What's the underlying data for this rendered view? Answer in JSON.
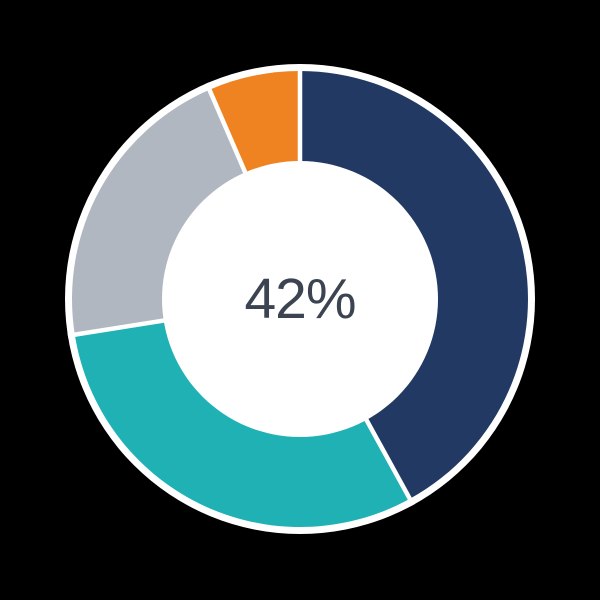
{
  "page": {
    "background_color": "#000000"
  },
  "chart_data": {
    "type": "donut",
    "title": "",
    "center_label": "42%",
    "center_label_color": "#3B4450",
    "start_angle_deg": 0,
    "direction": "clockwise",
    "total": 100,
    "legend": "none",
    "grid": "off",
    "highlighted_segment": "navy",
    "gap_color": "#FFFFFF",
    "hole_color": "#FFFFFF",
    "halo_color": "#FFFFFF",
    "segments": [
      {
        "name": "navy",
        "value": 42,
        "color": "#223963"
      },
      {
        "name": "teal",
        "value": 30.5,
        "color": "#1FB1B4"
      },
      {
        "name": "gray",
        "value": 21,
        "color": "#B1B7C1"
      },
      {
        "name": "orange",
        "value": 6.5,
        "color": "#F08321"
      }
    ]
  }
}
